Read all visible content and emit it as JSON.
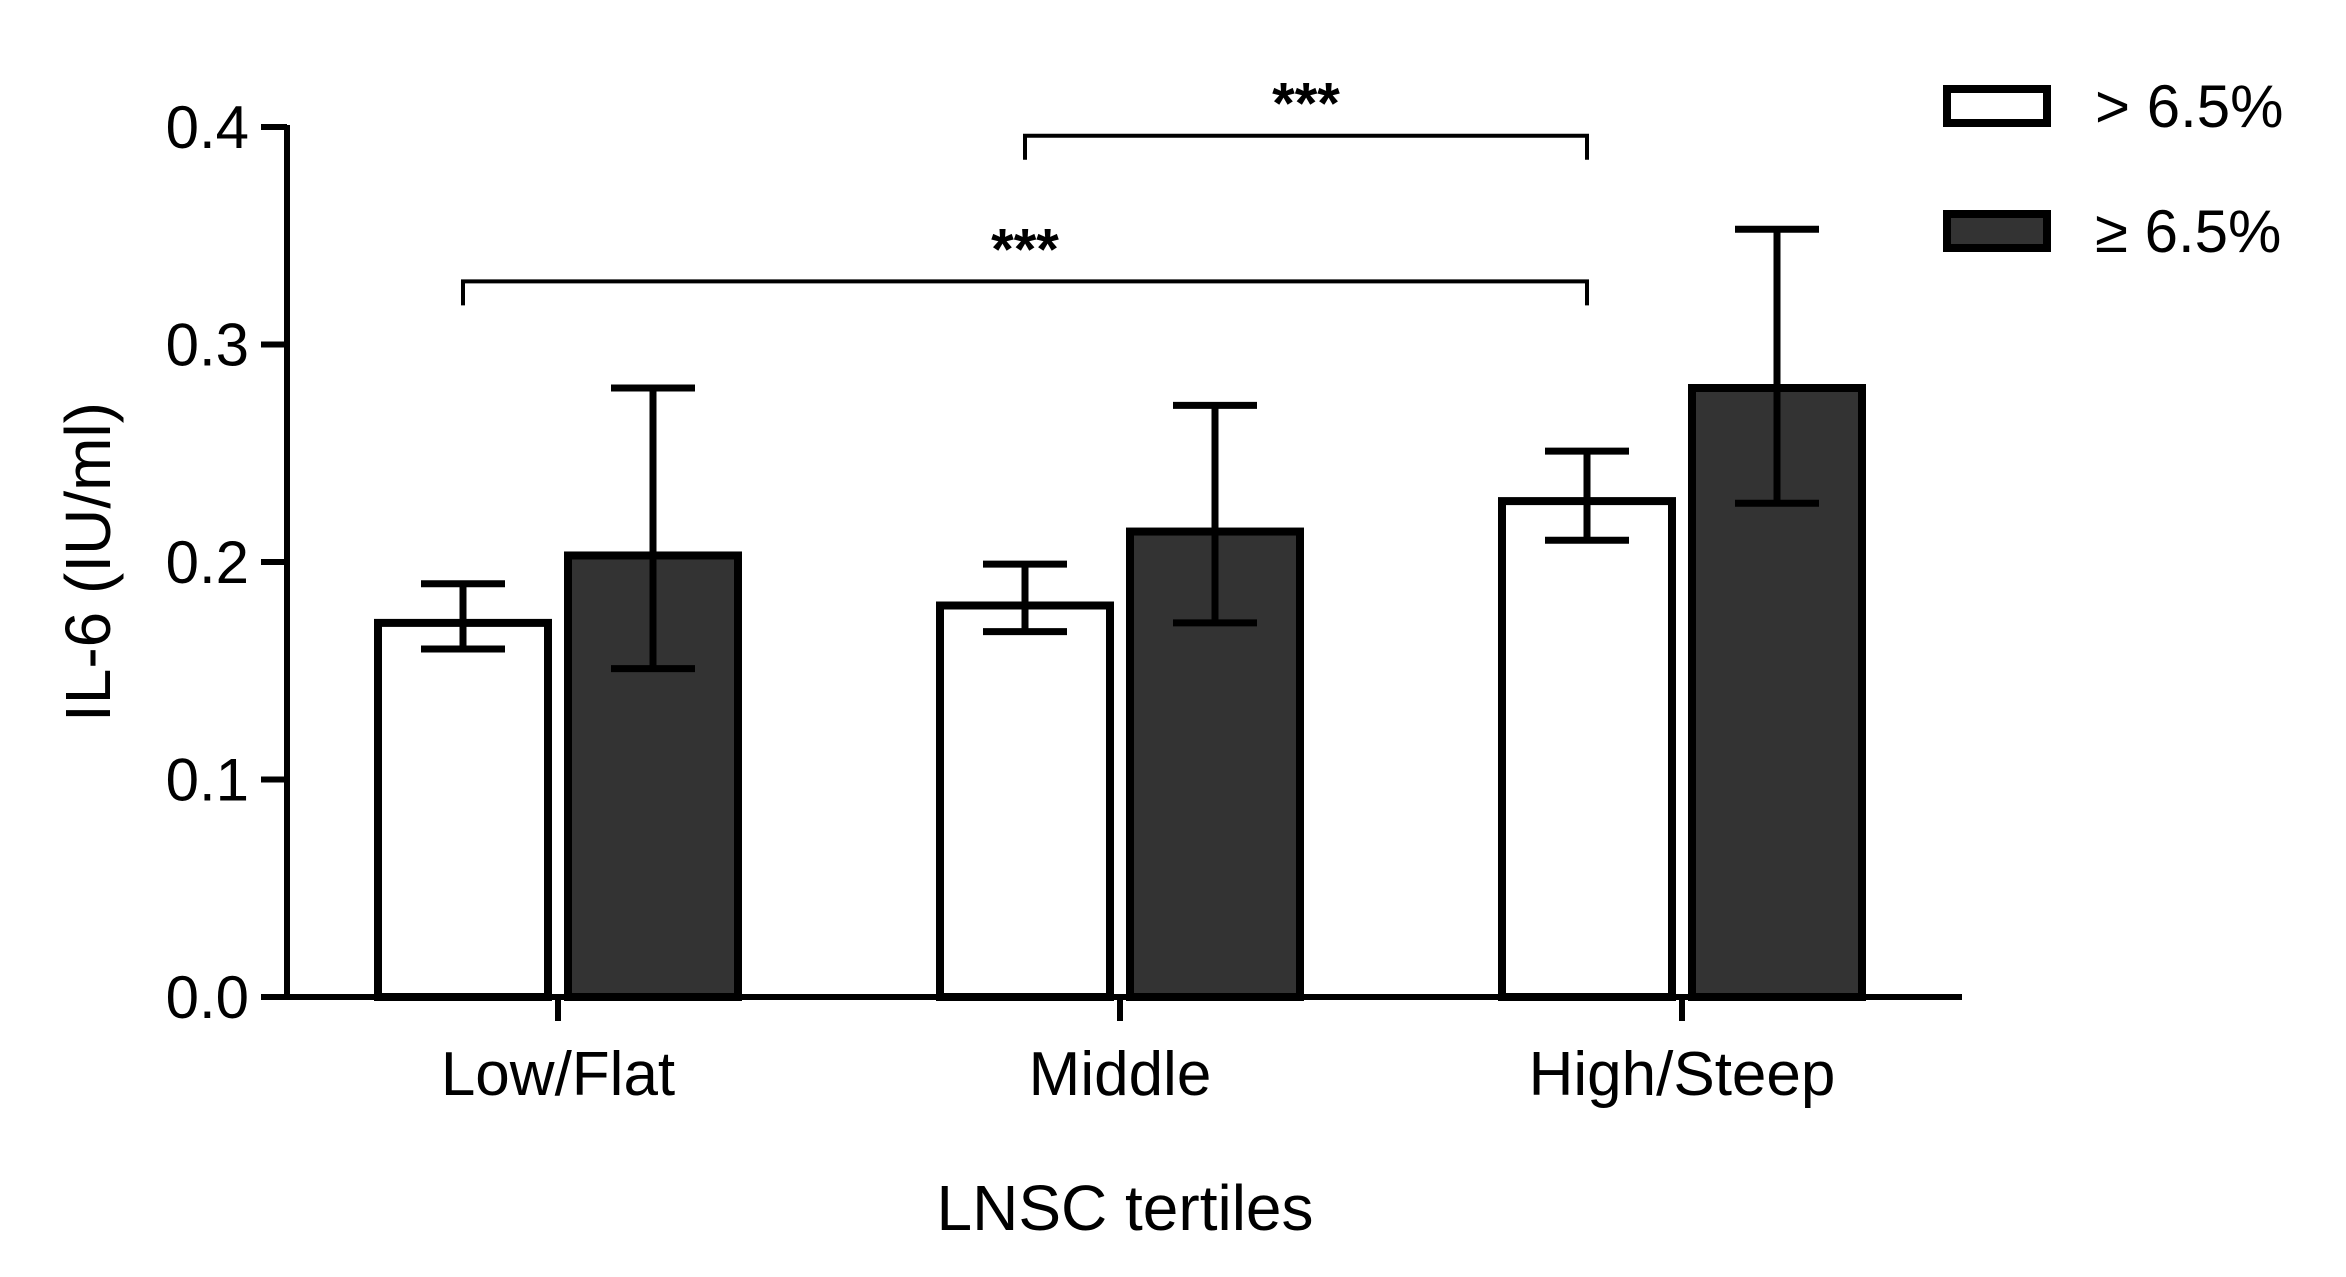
{
  "chart_data": {
    "type": "bar",
    "title": "",
    "xlabel": "LNSC tertiles",
    "ylabel": "IL-6 (IU/ml)",
    "categories": [
      "Low/Flat",
      "Middle",
      "High/Steep"
    ],
    "ylim": [
      0,
      0.4
    ],
    "yticks": [
      "0.0",
      "0.1",
      "0.2",
      "0.3",
      "0.4"
    ],
    "grid": false,
    "legend_position": "top-right",
    "series": [
      {
        "name": "> 6.5%",
        "color": "#ffffff",
        "values": [
          0.172,
          0.18,
          0.228
        ],
        "error_low": [
          0.16,
          0.168,
          0.21
        ],
        "error_high": [
          0.19,
          0.199,
          0.251
        ]
      },
      {
        "name": "≥ 6.5%",
        "color": "#333333",
        "values": [
          0.203,
          0.214,
          0.28
        ],
        "error_low": [
          0.151,
          0.172,
          0.227
        ],
        "error_high": [
          0.28,
          0.272,
          0.353
        ]
      }
    ],
    "annotations": [
      {
        "text": "***",
        "from_category": 1,
        "to_category": 2,
        "y": 0.396
      },
      {
        "text": "***",
        "from_category": 0,
        "to_category": 2,
        "y": 0.329
      }
    ]
  }
}
